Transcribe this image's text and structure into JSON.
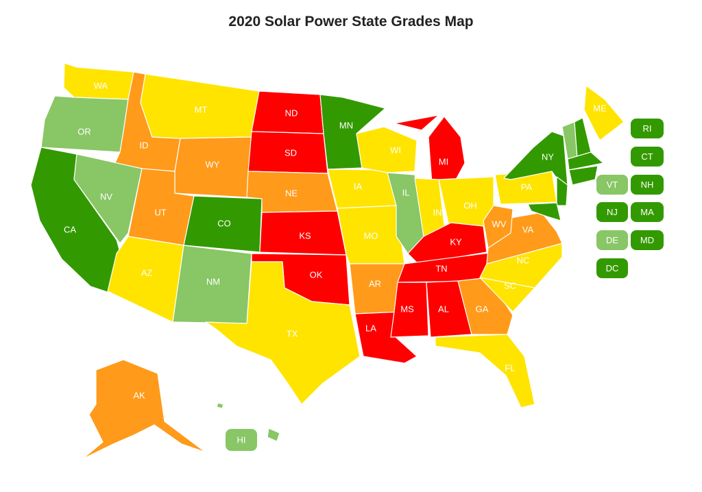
{
  "title": "2020 Solar Power State Grades Map",
  "colors": {
    "dark_green": "#339900",
    "light_green": "#88c666",
    "yellow": "#ffe400",
    "orange": "#ff9a1a",
    "red": "#ff0000"
  },
  "states": [
    {
      "abbr": "WA",
      "color": "yellow"
    },
    {
      "abbr": "OR",
      "color": "light_green"
    },
    {
      "abbr": "CA",
      "color": "dark_green"
    },
    {
      "abbr": "ID",
      "color": "orange"
    },
    {
      "abbr": "NV",
      "color": "light_green"
    },
    {
      "abbr": "MT",
      "color": "yellow"
    },
    {
      "abbr": "WY",
      "color": "orange"
    },
    {
      "abbr": "UT",
      "color": "orange"
    },
    {
      "abbr": "AZ",
      "color": "yellow"
    },
    {
      "abbr": "CO",
      "color": "dark_green"
    },
    {
      "abbr": "NM",
      "color": "light_green"
    },
    {
      "abbr": "ND",
      "color": "red"
    },
    {
      "abbr": "SD",
      "color": "red"
    },
    {
      "abbr": "NE",
      "color": "orange"
    },
    {
      "abbr": "KS",
      "color": "red"
    },
    {
      "abbr": "OK",
      "color": "red"
    },
    {
      "abbr": "TX",
      "color": "yellow"
    },
    {
      "abbr": "MN",
      "color": "dark_green"
    },
    {
      "abbr": "IA",
      "color": "yellow"
    },
    {
      "abbr": "MO",
      "color": "yellow"
    },
    {
      "abbr": "AR",
      "color": "orange"
    },
    {
      "abbr": "LA",
      "color": "red"
    },
    {
      "abbr": "WI",
      "color": "yellow"
    },
    {
      "abbr": "IL",
      "color": "light_green"
    },
    {
      "abbr": "MI",
      "color": "red"
    },
    {
      "abbr": "IN",
      "color": "yellow"
    },
    {
      "abbr": "OH",
      "color": "yellow"
    },
    {
      "abbr": "KY",
      "color": "red"
    },
    {
      "abbr": "TN",
      "color": "red"
    },
    {
      "abbr": "MS",
      "color": "red"
    },
    {
      "abbr": "AL",
      "color": "red"
    },
    {
      "abbr": "GA",
      "color": "orange"
    },
    {
      "abbr": "FL",
      "color": "yellow"
    },
    {
      "abbr": "SC",
      "color": "yellow"
    },
    {
      "abbr": "NC",
      "color": "yellow"
    },
    {
      "abbr": "VA",
      "color": "orange"
    },
    {
      "abbr": "WV",
      "color": "orange"
    },
    {
      "abbr": "PA",
      "color": "yellow"
    },
    {
      "abbr": "NY",
      "color": "dark_green"
    },
    {
      "abbr": "ME",
      "color": "yellow"
    },
    {
      "abbr": "AK",
      "color": "orange"
    }
  ],
  "tiles": [
    {
      "abbr": "RI",
      "color": "dark_green"
    },
    {
      "abbr": "CT",
      "color": "dark_green"
    },
    {
      "abbr": "VT",
      "color": "light_green"
    },
    {
      "abbr": "NH",
      "color": "dark_green"
    },
    {
      "abbr": "NJ",
      "color": "dark_green"
    },
    {
      "abbr": "MA",
      "color": "dark_green"
    },
    {
      "abbr": "DE",
      "color": "light_green"
    },
    {
      "abbr": "MD",
      "color": "dark_green"
    },
    {
      "abbr": "DC",
      "color": "dark_green"
    },
    {
      "abbr": "HI",
      "color": "light_green"
    }
  ]
}
